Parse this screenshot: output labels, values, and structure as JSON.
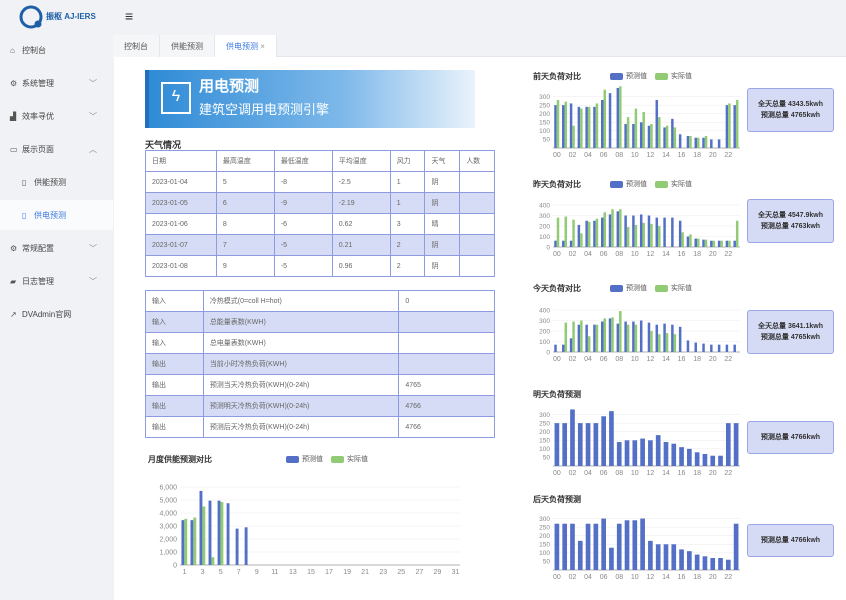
{
  "app": {
    "logo_text": "振枢 AJ-IERS"
  },
  "sidebar": {
    "items": [
      {
        "label": "控制台",
        "icon": "home-icon"
      },
      {
        "label": "系统管理",
        "icon": "gear-icon",
        "chevron": "down"
      },
      {
        "label": "效率寻优",
        "icon": "chart-icon",
        "chevron": "down"
      },
      {
        "label": "展示页面",
        "icon": "folder-icon",
        "chevron": "up"
      },
      {
        "label": "供能预测",
        "icon": "file-icon",
        "sub": true
      },
      {
        "label": "供电预测",
        "icon": "file-icon",
        "sub": true,
        "active": true
      },
      {
        "label": "常规配置",
        "icon": "gears-icon",
        "chevron": "down"
      },
      {
        "label": "日志管理",
        "icon": "book-icon",
        "chevron": "down"
      },
      {
        "label": "DVAdmin官网",
        "icon": "external-link-icon"
      }
    ]
  },
  "tabs": [
    {
      "label": "控制台"
    },
    {
      "label": "供能预测"
    },
    {
      "label": "供电预测",
      "active": true,
      "close": "×"
    }
  ],
  "banner": {
    "title": "用电预测",
    "subtitle": "建筑空调用电预测引擎"
  },
  "weather": {
    "title": "天气情况",
    "headers": [
      "日期",
      "最高温度",
      "最低温度",
      "平均温度",
      "风力",
      "天气",
      "人数"
    ],
    "rows": [
      [
        "2023-01-04",
        "5",
        "-8",
        "-2.5",
        "1",
        "阴",
        ""
      ],
      [
        "2023-01-05",
        "6",
        "-9",
        "-2.19",
        "1",
        "阴",
        ""
      ],
      [
        "2023-01-06",
        "8",
        "-6",
        "0.62",
        "3",
        "晴",
        ""
      ],
      [
        "2023-01-07",
        "7",
        "-5",
        "0.21",
        "2",
        "阴",
        ""
      ],
      [
        "2023-01-08",
        "9",
        "-5",
        "0.96",
        "2",
        "阴",
        ""
      ]
    ]
  },
  "io_table": {
    "rows": [
      [
        "输入",
        "冷热模式(0=coll H=hot)",
        "0"
      ],
      [
        "输入",
        "总能量表数(KWH)",
        ""
      ],
      [
        "输入",
        "总电量表数(KWH)",
        ""
      ],
      [
        "输出",
        "当前小时冷热负荷(KWH)",
        ""
      ],
      [
        "输出",
        "预测当天冷热负荷(KWH)(0-24h)",
        "4765"
      ],
      [
        "输出",
        "预测明天冷热负荷(KWH)(0-24h)",
        "4766"
      ],
      [
        "输出",
        "预测后天冷热负荷(KWH)(0-24h)",
        "4766"
      ]
    ]
  },
  "colors": {
    "predicted": "#5470c6",
    "actual": "#91cc75"
  },
  "legend": {
    "predicted": "预测值",
    "actual": "实际值"
  },
  "chart_data": [
    {
      "id": "monthly",
      "type": "bar",
      "title": "月度供能预测对比",
      "x": [
        1,
        2,
        3,
        4,
        5,
        6,
        7,
        8,
        9,
        10,
        11,
        12,
        13,
        14,
        15,
        16,
        17,
        18,
        19,
        20,
        21,
        22,
        23,
        24,
        25,
        26,
        27,
        28,
        29,
        30,
        31
      ],
      "xtick_labels": [
        "1",
        "3",
        "5",
        "7",
        "9",
        "11",
        "13",
        "15",
        "17",
        "19",
        "21",
        "23",
        "25",
        "27",
        "29",
        "31"
      ],
      "yticks": [
        "0",
        "1,000",
        "2,000",
        "3,000",
        "4,000",
        "5,000",
        "6,000"
      ],
      "ylim": [
        0,
        6000
      ],
      "series": [
        {
          "name": "预测值",
          "values": [
            3450,
            3450,
            5700,
            4950,
            4950,
            4750,
            2800,
            2900,
            0,
            0,
            0,
            0,
            0,
            0,
            0,
            0,
            0,
            0,
            0,
            0,
            0,
            0,
            0,
            0,
            0,
            0,
            0,
            0,
            0,
            0,
            0
          ]
        },
        {
          "name": "实际值",
          "values": [
            3550,
            3650,
            4500,
            600,
            4850,
            0,
            0,
            0,
            0,
            0,
            0,
            0,
            0,
            0,
            0,
            0,
            0,
            0,
            0,
            0,
            0,
            0,
            0,
            0,
            0,
            0,
            0,
            0,
            0,
            0,
            0
          ]
        }
      ]
    },
    {
      "id": "day-before",
      "type": "bar",
      "title": "前天负荷对比",
      "xtick_labels": [
        "00",
        "02",
        "04",
        "06",
        "08",
        "10",
        "12",
        "14",
        "16",
        "18",
        "20",
        "22"
      ],
      "yticks": [
        "50",
        "100",
        "150",
        "200",
        "250",
        "300"
      ],
      "ylim": [
        0,
        350
      ],
      "series": [
        {
          "name": "预测值",
          "values": [
            250,
            250,
            260,
            240,
            240,
            240,
            280,
            320,
            350,
            140,
            140,
            150,
            130,
            280,
            120,
            170,
            80,
            70,
            60,
            60,
            50,
            50,
            250,
            250
          ]
        },
        {
          "name": "实际值",
          "values": [
            280,
            270,
            130,
            230,
            240,
            260,
            340,
            0,
            360,
            180,
            230,
            210,
            140,
            180,
            130,
            120,
            0,
            70,
            60,
            70,
            0,
            0,
            260,
            280
          ]
        }
      ],
      "summary": [
        "全天总量 4343.5kwh",
        "预测总量 4765kwh"
      ]
    },
    {
      "id": "yesterday",
      "type": "bar",
      "title": "昨天负荷对比",
      "xtick_labels": [
        "00",
        "02",
        "04",
        "06",
        "08",
        "10",
        "12",
        "14",
        "16",
        "18",
        "20",
        "22"
      ],
      "yticks": [
        "0",
        "100",
        "200",
        "300",
        "400"
      ],
      "ylim": [
        0,
        400
      ],
      "series": [
        {
          "name": "预测值",
          "values": [
            60,
            60,
            60,
            210,
            250,
            250,
            280,
            310,
            340,
            300,
            300,
            310,
            300,
            280,
            280,
            280,
            250,
            100,
            80,
            70,
            60,
            60,
            60,
            60
          ]
        },
        {
          "name": "实际值",
          "values": [
            280,
            290,
            260,
            130,
            240,
            270,
            330,
            360,
            360,
            190,
            210,
            230,
            220,
            200,
            0,
            0,
            140,
            120,
            80,
            70,
            60,
            60,
            60,
            250
          ]
        }
      ],
      "summary": [
        "全天总量 4547.9kwh",
        "预测总量 4763kwh"
      ]
    },
    {
      "id": "today",
      "type": "bar",
      "title": "今天负荷对比",
      "xtick_labels": [
        "00",
        "02",
        "04",
        "06",
        "08",
        "10",
        "12",
        "14",
        "16",
        "18",
        "20",
        "22"
      ],
      "yticks": [
        "0",
        "100",
        "200",
        "300",
        "400"
      ],
      "ylim": [
        0,
        400
      ],
      "series": [
        {
          "name": "预测值",
          "values": [
            70,
            70,
            130,
            260,
            260,
            260,
            290,
            320,
            270,
            290,
            290,
            300,
            280,
            260,
            270,
            260,
            240,
            110,
            90,
            80,
            70,
            70,
            70,
            70
          ]
        },
        {
          "name": "实际值",
          "values": [
            0,
            280,
            290,
            300,
            150,
            260,
            320,
            330,
            390,
            260,
            260,
            0,
            200,
            170,
            180,
            170,
            0,
            0,
            0,
            0,
            0,
            0,
            0,
            0
          ]
        }
      ],
      "summary": [
        "全天总量 3641.1kwh",
        "预测总量 4765kwh"
      ]
    },
    {
      "id": "tomorrow",
      "type": "bar",
      "title": "明天负荷预测",
      "xtick_labels": [
        "00",
        "02",
        "04",
        "06",
        "08",
        "10",
        "12",
        "14",
        "16",
        "18",
        "20",
        "22"
      ],
      "yticks": [
        "50",
        "100",
        "150",
        "200",
        "250",
        "300"
      ],
      "ylim": [
        0,
        350
      ],
      "series": [
        {
          "name": "预测值",
          "values": [
            250,
            250,
            330,
            250,
            250,
            250,
            290,
            320,
            140,
            150,
            150,
            160,
            150,
            180,
            140,
            130,
            110,
            100,
            80,
            70,
            60,
            60,
            250,
            250
          ]
        }
      ],
      "summary": [
        "预测总量 4766kwh"
      ]
    },
    {
      "id": "after-tomorrow",
      "type": "bar",
      "title": "后天负荷预测",
      "xtick_labels": [
        "00",
        "02",
        "04",
        "06",
        "08",
        "10",
        "12",
        "14",
        "16",
        "18",
        "20",
        "22"
      ],
      "yticks": [
        "50",
        "100",
        "150",
        "200",
        "250",
        "300"
      ],
      "ylim": [
        0,
        350
      ],
      "series": [
        {
          "name": "预测值",
          "values": [
            270,
            270,
            270,
            170,
            270,
            270,
            300,
            130,
            270,
            290,
            290,
            300,
            170,
            150,
            150,
            150,
            120,
            110,
            90,
            80,
            70,
            70,
            60,
            270
          ]
        }
      ],
      "summary": [
        "预测总量 4766kwh"
      ]
    }
  ]
}
